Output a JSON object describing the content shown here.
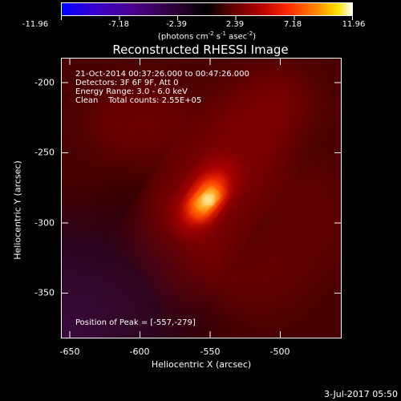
{
  "colorbar": {
    "tick_labels": [
      "-11.96",
      "-7.18",
      "-2.39",
      "2.39",
      "7.18",
      "11.96"
    ],
    "units_html": "(photons cm<sup>-2</sup> s<sup>-1</sup> asec<sup>-2</sup>)",
    "colormap": [
      "#0000ff",
      "#3a00c8",
      "#4a0088",
      "#2a0030",
      "#000000",
      "#5a0000",
      "#b00000",
      "#ff2a00",
      "#ff8a00",
      "#ffe000",
      "#ffffff"
    ]
  },
  "title": "Reconstructed RHESSI Image",
  "info": {
    "line1": "21-Oct-2014 00:37:26.000 to 00:47:26.000",
    "line2": "Detectors: 3F 6F 9F, Att 0",
    "line3": "Energy Range: 3.0 - 6.0 keV",
    "line4": "Clean    Total counts: 2.55E+05"
  },
  "peak_label": "Position of Peak = [-557,-279]",
  "axes": {
    "xlabel": "Heliocentric X (arcsec)",
    "ylabel": "Heliocentric Y (arcsec)",
    "x_ticks": [
      "-650",
      "-600",
      "-550",
      "-500"
    ],
    "y_ticks": [
      "-200",
      "-250",
      "-300",
      "-350"
    ],
    "xlim": [
      -660,
      -460
    ],
    "ylim": [
      -375,
      -175
    ]
  },
  "footer": "3-Jul-2017 05:50"
}
